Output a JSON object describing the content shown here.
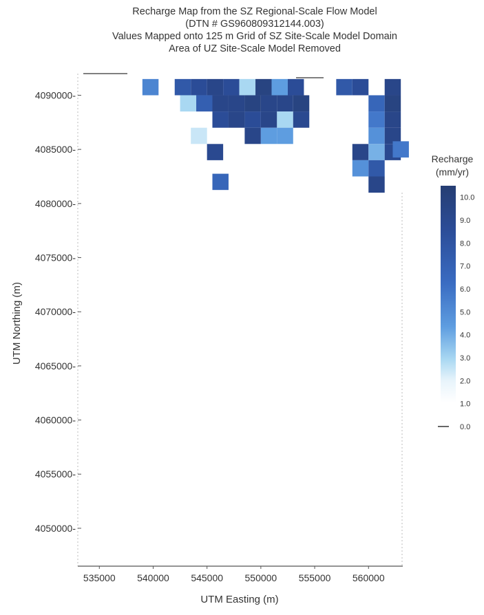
{
  "chart_data": {
    "type": "heatmap",
    "title_lines": [
      "Recharge Map from the SZ Regional-Scale Flow Model",
      "(DTN # GS960809312144.003)",
      "Values Mapped onto 125 m Grid of SZ Site-Scale Model Domain",
      "Area of UZ Site-Scale Model Removed"
    ],
    "xlabel": "UTM Easting (m)",
    "ylabel": "UTM Northing (m)",
    "xlim": [
      533000,
      563500
    ],
    "ylim": [
      4046500,
      4092000
    ],
    "xticks": [
      535000,
      540000,
      545000,
      550000,
      555000,
      560000
    ],
    "yticks": [
      4050000,
      4055000,
      4060000,
      4065000,
      4070000,
      4075000,
      4080000,
      4085000,
      4090000
    ],
    "colorbar": {
      "title_lines": [
        "Recharge",
        "(mm/yr)"
      ],
      "ticks": [
        "10.0",
        "9.0",
        "8.0",
        "7.0",
        "6.0",
        "5.0",
        "4.0",
        "3.0",
        "2.0",
        "1.0",
        "0.0"
      ],
      "range": [
        0,
        10.5
      ]
    },
    "cell_size_m": 1500,
    "cells": [
      {
        "x": 539750,
        "y": 4090750,
        "v": 4.5
      },
      {
        "x": 542750,
        "y": 4090750,
        "v": 7.0
      },
      {
        "x": 544250,
        "y": 4090750,
        "v": 8.0
      },
      {
        "x": 545750,
        "y": 4090750,
        "v": 9.0
      },
      {
        "x": 547250,
        "y": 4090750,
        "v": 8.0
      },
      {
        "x": 548750,
        "y": 4090750,
        "v": 2.0
      },
      {
        "x": 550250,
        "y": 4090750,
        "v": 9.5
      },
      {
        "x": 551750,
        "y": 4090750,
        "v": 3.5
      },
      {
        "x": 553250,
        "y": 4090750,
        "v": 8.0
      },
      {
        "x": 557750,
        "y": 4090750,
        "v": 7.0
      },
      {
        "x": 559250,
        "y": 4090750,
        "v": 8.0
      },
      {
        "x": 562250,
        "y": 4090750,
        "v": 9.0
      },
      {
        "x": 543250,
        "y": 4089250,
        "v": 2.0
      },
      {
        "x": 544750,
        "y": 4089250,
        "v": 6.5
      },
      {
        "x": 546250,
        "y": 4089250,
        "v": 9.0
      },
      {
        "x": 547750,
        "y": 4089250,
        "v": 9.0
      },
      {
        "x": 549250,
        "y": 4089250,
        "v": 9.5
      },
      {
        "x": 550750,
        "y": 4089250,
        "v": 9.0
      },
      {
        "x": 552250,
        "y": 4089250,
        "v": 9.0
      },
      {
        "x": 553750,
        "y": 4089250,
        "v": 9.5
      },
      {
        "x": 560750,
        "y": 4089250,
        "v": 6.0
      },
      {
        "x": 562250,
        "y": 4089250,
        "v": 9.5
      },
      {
        "x": 546250,
        "y": 4087750,
        "v": 8.0
      },
      {
        "x": 547750,
        "y": 4087750,
        "v": 9.0
      },
      {
        "x": 549250,
        "y": 4087750,
        "v": 8.0
      },
      {
        "x": 550750,
        "y": 4087750,
        "v": 9.0
      },
      {
        "x": 552250,
        "y": 4087750,
        "v": 2.0
      },
      {
        "x": 553750,
        "y": 4087750,
        "v": 8.5
      },
      {
        "x": 560750,
        "y": 4087750,
        "v": 5.0
      },
      {
        "x": 562250,
        "y": 4087750,
        "v": 9.0
      },
      {
        "x": 544250,
        "y": 4086250,
        "v": 1.5
      },
      {
        "x": 549250,
        "y": 4086250,
        "v": 9.0
      },
      {
        "x": 550750,
        "y": 4086250,
        "v": 3.5
      },
      {
        "x": 552250,
        "y": 4086250,
        "v": 3.5
      },
      {
        "x": 560750,
        "y": 4086250,
        "v": 4.0
      },
      {
        "x": 562250,
        "y": 4086250,
        "v": 9.0
      },
      {
        "x": 545750,
        "y": 4084750,
        "v": 8.5
      },
      {
        "x": 559250,
        "y": 4084750,
        "v": 9.0
      },
      {
        "x": 560750,
        "y": 4084750,
        "v": 3.0
      },
      {
        "x": 562250,
        "y": 4084750,
        "v": 8.5
      },
      {
        "x": 563000,
        "y": 4085000,
        "v": 5.0
      },
      {
        "x": 559250,
        "y": 4083250,
        "v": 4.0
      },
      {
        "x": 560750,
        "y": 4083250,
        "v": 7.0
      },
      {
        "x": 546250,
        "y": 4082000,
        "v": 6.0
      },
      {
        "x": 560750,
        "y": 4081750,
        "v": 9.0
      }
    ]
  }
}
